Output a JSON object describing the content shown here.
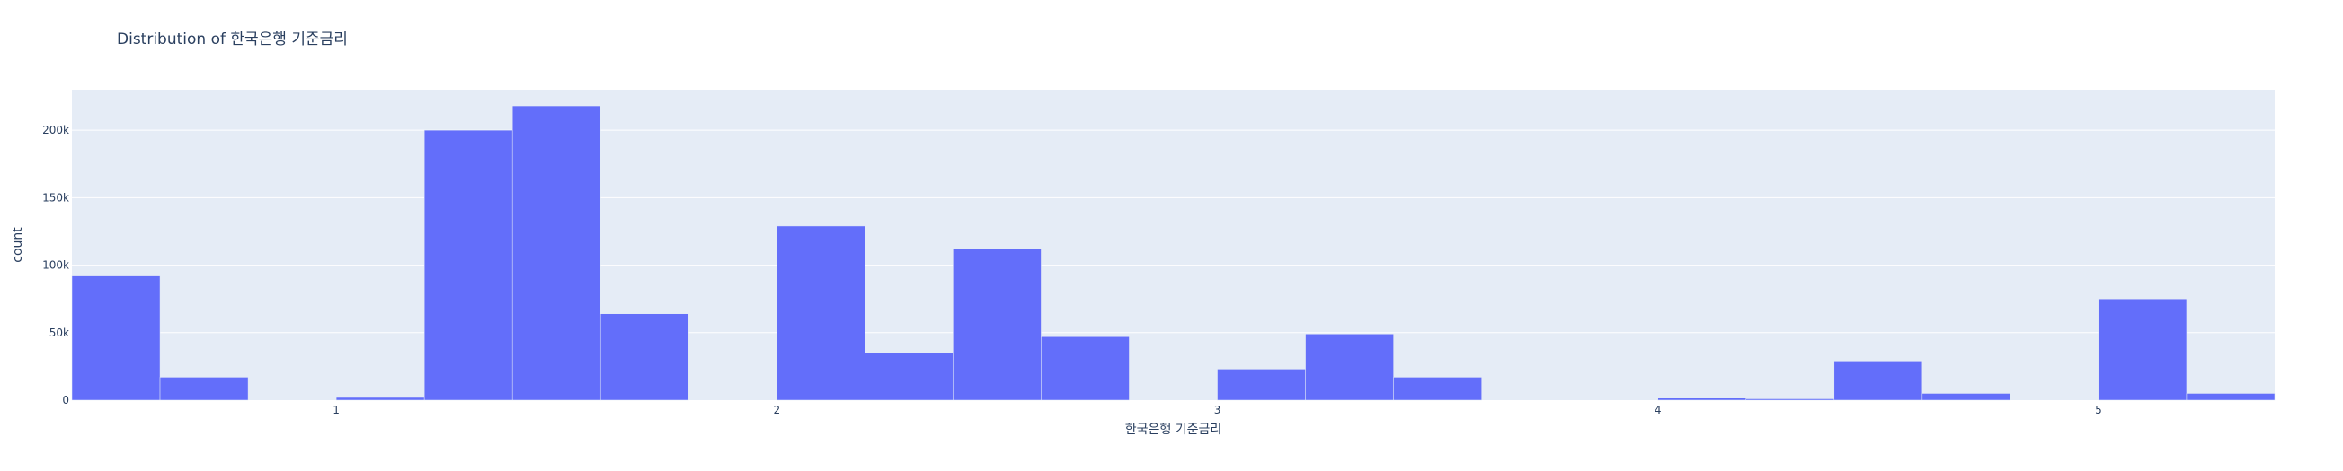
{
  "chart_data": {
    "type": "bar",
    "title": "Distribution of 한국은행 기준금리",
    "xlabel": "한국은행 기준금리",
    "ylabel": "count",
    "xlim": [
      0.4,
      5.4
    ],
    "ylim": [
      0,
      230000
    ],
    "bin_width": 0.2,
    "bins": [
      {
        "x0": 0.4,
        "x1": 0.6,
        "count": 92000
      },
      {
        "x0": 0.6,
        "x1": 0.8,
        "count": 17000
      },
      {
        "x0": 1.0,
        "x1": 1.2,
        "count": 2000
      },
      {
        "x0": 1.2,
        "x1": 1.4,
        "count": 200000
      },
      {
        "x0": 1.4,
        "x1": 1.6,
        "count": 218000
      },
      {
        "x0": 1.6,
        "x1": 1.8,
        "count": 64000
      },
      {
        "x0": 2.0,
        "x1": 2.2,
        "count": 129000
      },
      {
        "x0": 2.2,
        "x1": 2.4,
        "count": 35000
      },
      {
        "x0": 2.4,
        "x1": 2.6,
        "count": 112000
      },
      {
        "x0": 2.6,
        "x1": 2.8,
        "count": 47000
      },
      {
        "x0": 3.0,
        "x1": 3.2,
        "count": 23000
      },
      {
        "x0": 3.2,
        "x1": 3.4,
        "count": 49000
      },
      {
        "x0": 3.4,
        "x1": 3.6,
        "count": 17000
      },
      {
        "x0": 4.0,
        "x1": 4.2,
        "count": 1500
      },
      {
        "x0": 4.2,
        "x1": 4.4,
        "count": 1000
      },
      {
        "x0": 4.4,
        "x1": 4.6,
        "count": 29000
      },
      {
        "x0": 4.6,
        "x1": 4.8,
        "count": 5000
      },
      {
        "x0": 5.0,
        "x1": 5.2,
        "count": 75000
      },
      {
        "x0": 5.2,
        "x1": 5.4,
        "count": 5000
      }
    ],
    "x_ticks": [
      {
        "value": 1,
        "label": "1"
      },
      {
        "value": 2,
        "label": "2"
      },
      {
        "value": 3,
        "label": "3"
      },
      {
        "value": 4,
        "label": "4"
      },
      {
        "value": 5,
        "label": "5"
      }
    ],
    "y_ticks": [
      {
        "value": 0,
        "label": "0"
      },
      {
        "value": 50000,
        "label": "50k"
      },
      {
        "value": 100000,
        "label": "100k"
      },
      {
        "value": 150000,
        "label": "150k"
      },
      {
        "value": 200000,
        "label": "200k"
      }
    ],
    "grid": true,
    "colors": {
      "bar": "#636efa",
      "plot_background": "#e5ecf6",
      "grid": "#ffffff",
      "text": "#2a3f5f"
    }
  }
}
